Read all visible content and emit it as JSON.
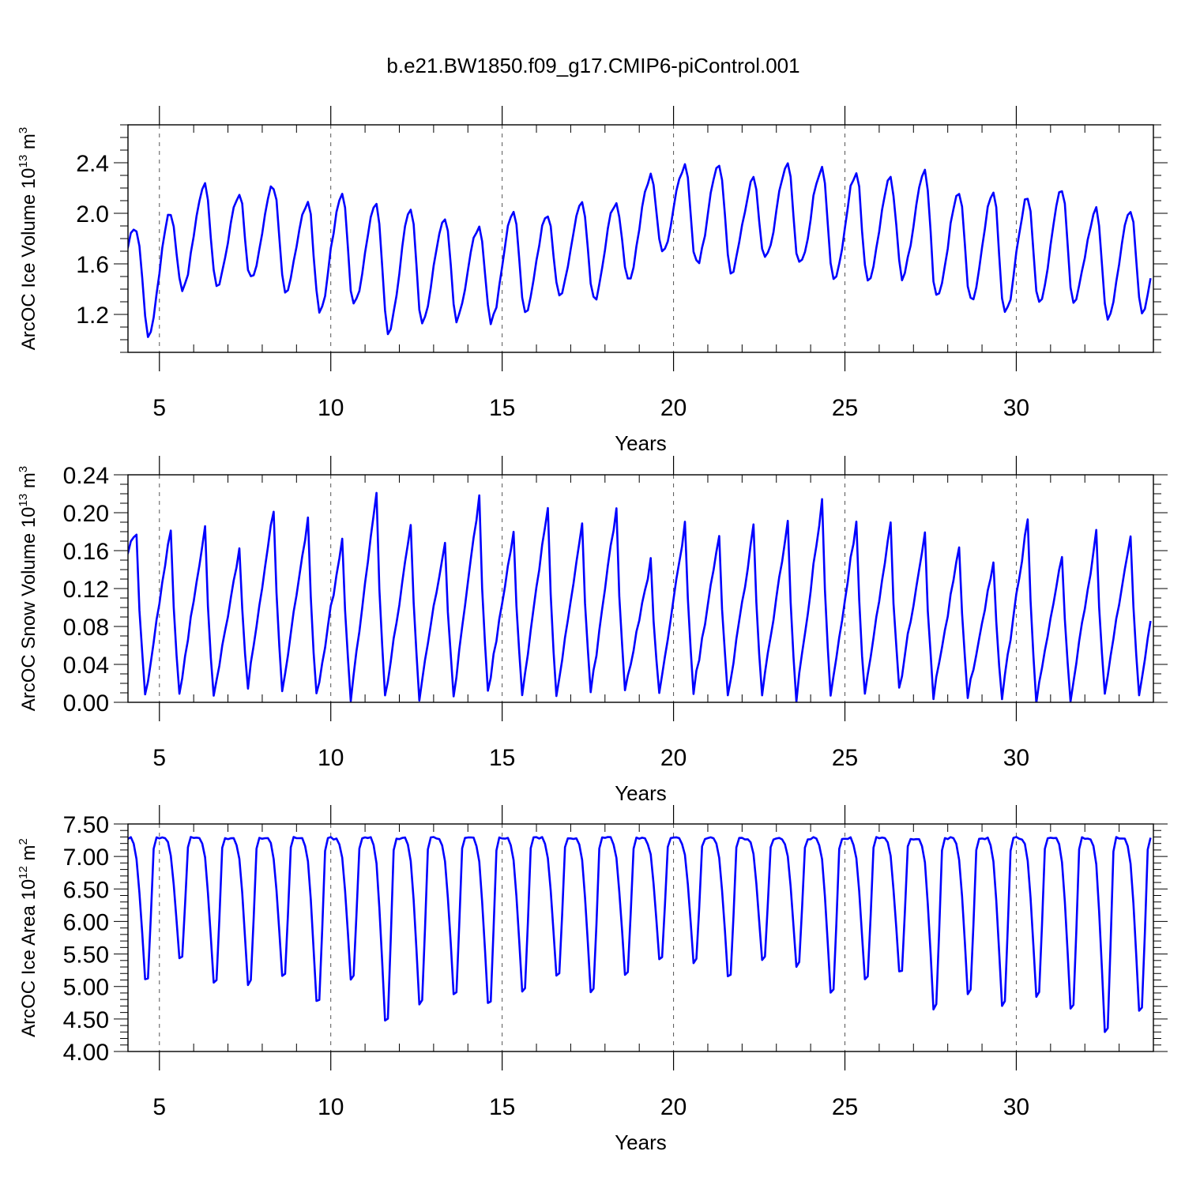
{
  "figure_title": "b.e21.BW1850.f09_g17.CMIP6-piControl.001",
  "chart_data": [
    {
      "type": "line",
      "id": "ice-volume",
      "title": "b.e21.BW1850.f09_g17.CMIP6-piControl.001",
      "xlabel": "Years",
      "ylabel": "ArcOC Ice Volume 10",
      "ylabel_sup": "13",
      "ylabel_unit": " m",
      "ylabel_unit_sup": "3",
      "xlim": [
        4.0833,
        34.0
      ],
      "ylim": [
        0.9,
        2.7
      ],
      "xticks": [
        5,
        10,
        15,
        20,
        25,
        30
      ],
      "xtick_labels": [
        "5",
        "10",
        "15",
        "20",
        "25",
        "30"
      ],
      "yticks": [
        1.2,
        1.6,
        2.0,
        2.4
      ],
      "ytick_labels": [
        "1.2",
        "1.6",
        "2.0",
        "2.4"
      ],
      "yminor_step": 0.1,
      "grid": "vertical dashed at major x ticks",
      "line_color": "#0000ff",
      "series": [
        {
          "name": "Ice Volume",
          "type": "seasonal",
          "maxima": [
            1.88,
            2.0,
            2.21,
            2.15,
            2.22,
            2.09,
            2.15,
            2.06,
            2.02,
            1.98,
            1.9,
            2.02,
            1.99,
            2.09,
            2.09,
            2.29,
            2.37,
            2.38,
            2.26,
            2.4,
            2.35,
            2.32,
            2.26,
            2.35,
            2.15,
            2.16,
            2.13,
            2.18,
            2.02,
            2.04
          ],
          "minima": [
            1.05,
            1.41,
            1.42,
            1.48,
            1.37,
            1.24,
            1.28,
            1.06,
            1.13,
            1.16,
            1.14,
            1.21,
            1.35,
            1.31,
            1.47,
            1.68,
            1.6,
            1.54,
            1.65,
            1.59,
            1.47,
            1.45,
            1.5,
            1.33,
            1.31,
            1.2,
            1.29,
            1.3,
            1.16,
            1.22
          ],
          "start": 1.45,
          "end": 1.62,
          "peak_month": 4,
          "trough_month": 8,
          "noise": 0.03
        }
      ]
    },
    {
      "type": "line",
      "id": "snow-volume",
      "xlabel": "Years",
      "ylabel": "ArcOC Snow Volume 10",
      "ylabel_sup": "13",
      "ylabel_unit": " m",
      "ylabel_unit_sup": "3",
      "xlim": [
        4.0833,
        34.0
      ],
      "ylim": [
        0.0,
        0.24
      ],
      "xticks": [
        5,
        10,
        15,
        20,
        25,
        30
      ],
      "xtick_labels": [
        "5",
        "10",
        "15",
        "20",
        "25",
        "30"
      ],
      "yticks": [
        0.0,
        0.04,
        0.08,
        0.12,
        0.16,
        0.2,
        0.24
      ],
      "ytick_labels": [
        "0.00",
        "0.04",
        "0.08",
        "0.12",
        "0.16",
        "0.20",
        "0.24"
      ],
      "yminor_step": 0.01,
      "grid": "vertical dashed at major x ticks",
      "line_color": "#0000ff",
      "series": [
        {
          "name": "Snow Volume",
          "type": "sawtooth",
          "maxima": [
            0.18,
            0.183,
            0.182,
            0.163,
            0.205,
            0.195,
            0.172,
            0.219,
            0.186,
            0.172,
            0.219,
            0.181,
            0.207,
            0.189,
            0.206,
            0.149,
            0.188,
            0.176,
            0.184,
            0.192,
            0.212,
            0.191,
            0.186,
            0.18,
            0.163,
            0.147,
            0.195,
            0.154,
            0.178,
            0.179
          ],
          "minima": [
            0.006,
            0.01,
            0.005,
            0.018,
            0.009,
            0.006,
            0.004,
            0.004,
            0.005,
            0.006,
            0.009,
            0.007,
            0.005,
            0.008,
            0.011,
            0.006,
            0.011,
            0.006,
            0.01,
            0.004,
            0.006,
            0.007,
            0.013,
            0.006,
            0.006,
            0.005,
            0.003,
            0.003,
            0.009,
            0.008
          ],
          "start": 0.118,
          "end": 0.102,
          "peak_month": 4,
          "trough_month": 7,
          "noise": 0.004
        }
      ]
    },
    {
      "type": "line",
      "id": "ice-area",
      "xlabel": "Years",
      "ylabel": "ArcOC Ice Area 10",
      "ylabel_sup": "12",
      "ylabel_unit": " m",
      "ylabel_unit_sup": "2",
      "xlim": [
        4.0833,
        34.0
      ],
      "ylim": [
        4.0,
        7.5
      ],
      "xticks": [
        5,
        10,
        15,
        20,
        25,
        30
      ],
      "xtick_labels": [
        "5",
        "10",
        "15",
        "20",
        "25",
        "30"
      ],
      "yticks": [
        4.0,
        4.5,
        5.0,
        5.5,
        6.0,
        6.5,
        7.0,
        7.5
      ],
      "ytick_labels": [
        "4.00",
        "4.50",
        "5.00",
        "5.50",
        "6.00",
        "6.50",
        "7.00",
        "7.50"
      ],
      "yminor_step": 0.1,
      "grid": "vertical dashed at major x ticks",
      "line_color": "#0000ff",
      "series": [
        {
          "name": "Ice Area",
          "type": "plateau",
          "maxima": [
            7.28,
            7.28,
            7.28,
            7.28,
            7.28,
            7.28,
            7.28,
            7.28,
            7.28,
            7.28,
            7.28,
            7.28,
            7.28,
            7.28,
            7.28,
            7.28,
            7.28,
            7.28,
            7.28,
            7.28,
            7.28,
            7.28,
            7.28,
            7.28,
            7.28,
            7.28,
            7.28,
            7.28,
            7.28,
            7.28
          ],
          "minima": [
            5.1,
            5.44,
            5.05,
            5.04,
            5.15,
            4.76,
            5.12,
            4.46,
            4.74,
            4.88,
            4.73,
            4.92,
            5.16,
            4.9,
            5.17,
            5.4,
            5.37,
            5.15,
            5.42,
            5.32,
            4.9,
            5.1,
            5.22,
            4.66,
            4.89,
            4.71,
            4.86,
            4.67,
            4.3,
            4.63
          ],
          "start": 7.28,
          "end": 7.28,
          "peak_month": 4,
          "trough_month": 8,
          "noise": 0.02
        }
      ]
    }
  ]
}
